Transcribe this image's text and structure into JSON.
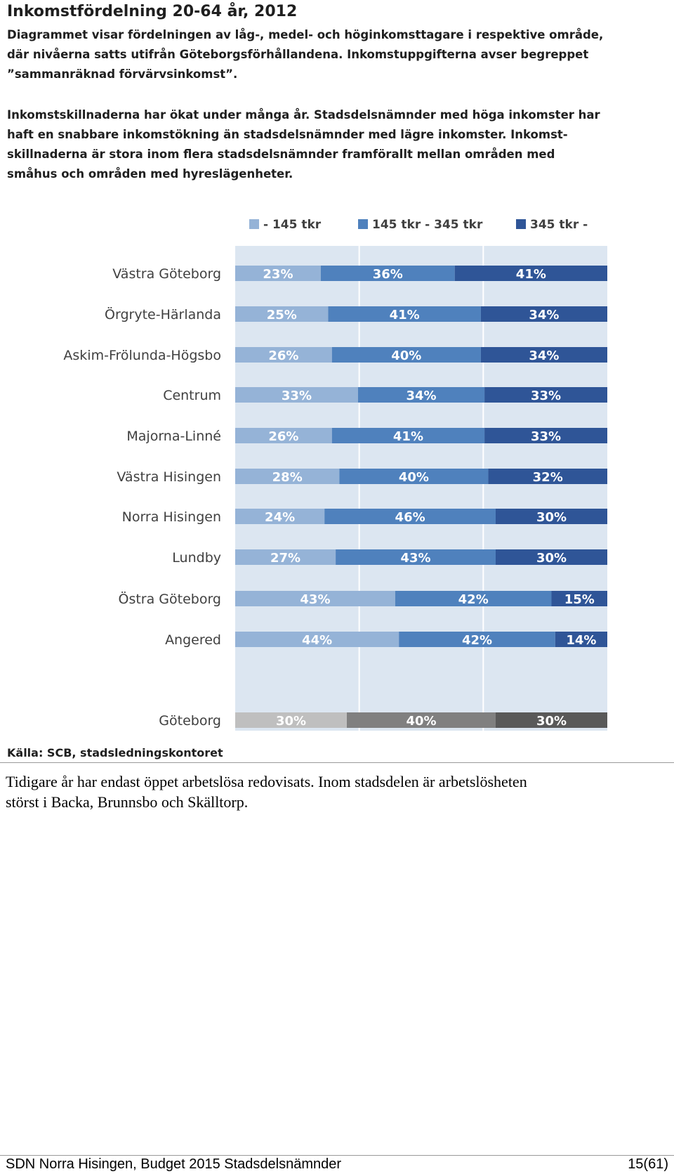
{
  "figure": {
    "title": "Inkomstfördelning 20-64 år, 2012",
    "intro_lines": [
      "Diagrammet visar fördelningen av låg-, medel- och höginkomsttagare i respektive område,",
      "där nivåerna satts utifrån Göteborgsförhållandena. Inkomstuppgifterna avser  begreppet",
      "”sammanräknad förvärvsinkomst”."
    ],
    "description_lines": [
      "Inkomstskillnaderna har ökat under många år. Stadsdelsnämnder med höga inkomster har",
      "haft en snabbare inkomstökning än stadsdelsnämnder med lägre inkomster. Inkomst-",
      "skillnaderna är stora inom flera stadsdelsnämnder framförallt mellan områden med",
      "småhus och områden med hyreslägenheter."
    ],
    "source": "Källa: SCB, stadsledningskontoret"
  },
  "chart_data": {
    "type": "bar",
    "orientation": "horizontal-stacked-100",
    "categories": [
      "Västra Göteborg",
      "Örgryte-Härlanda",
      "Askim-Frölunda-Högsbo",
      "Centrum",
      "Majorna-Linné",
      "Västra Hisingen",
      "Norra Hisingen",
      "Lundby",
      "Östra Göteborg",
      "Angered",
      "Göteborg"
    ],
    "series": [
      {
        "name": "- 145 tkr",
        "values": [
          23,
          25,
          26,
          33,
          26,
          28,
          24,
          27,
          43,
          44,
          30
        ],
        "color": "#95b3d7"
      },
      {
        "name": "145 tkr - 345 tkr",
        "values": [
          36,
          41,
          40,
          34,
          41,
          40,
          46,
          43,
          42,
          42,
          40
        ],
        "color": "#4f81bd"
      },
      {
        "name": "345 tkr -",
        "values": [
          41,
          34,
          34,
          33,
          33,
          32,
          30,
          30,
          15,
          14,
          30
        ],
        "color": "#2f5597"
      }
    ],
    "total_row_colors": [
      "#bfbfbf",
      "#808080",
      "#595959"
    ],
    "legend_position": "top",
    "plot_background": "#dce6f1",
    "grid": true,
    "xlim": [
      0,
      100
    ]
  },
  "body": {
    "lines": [
      "Tidigare år har endast öppet arbetslösa redovisats. Inom stadsdelen är arbetslösheten",
      "störst i Backa, Brunnsbo och Skälltorp."
    ]
  },
  "footer": {
    "left": "SDN Norra Hisingen, Budget 2015 Stadsdelsnämnder",
    "right": "15(61)"
  }
}
